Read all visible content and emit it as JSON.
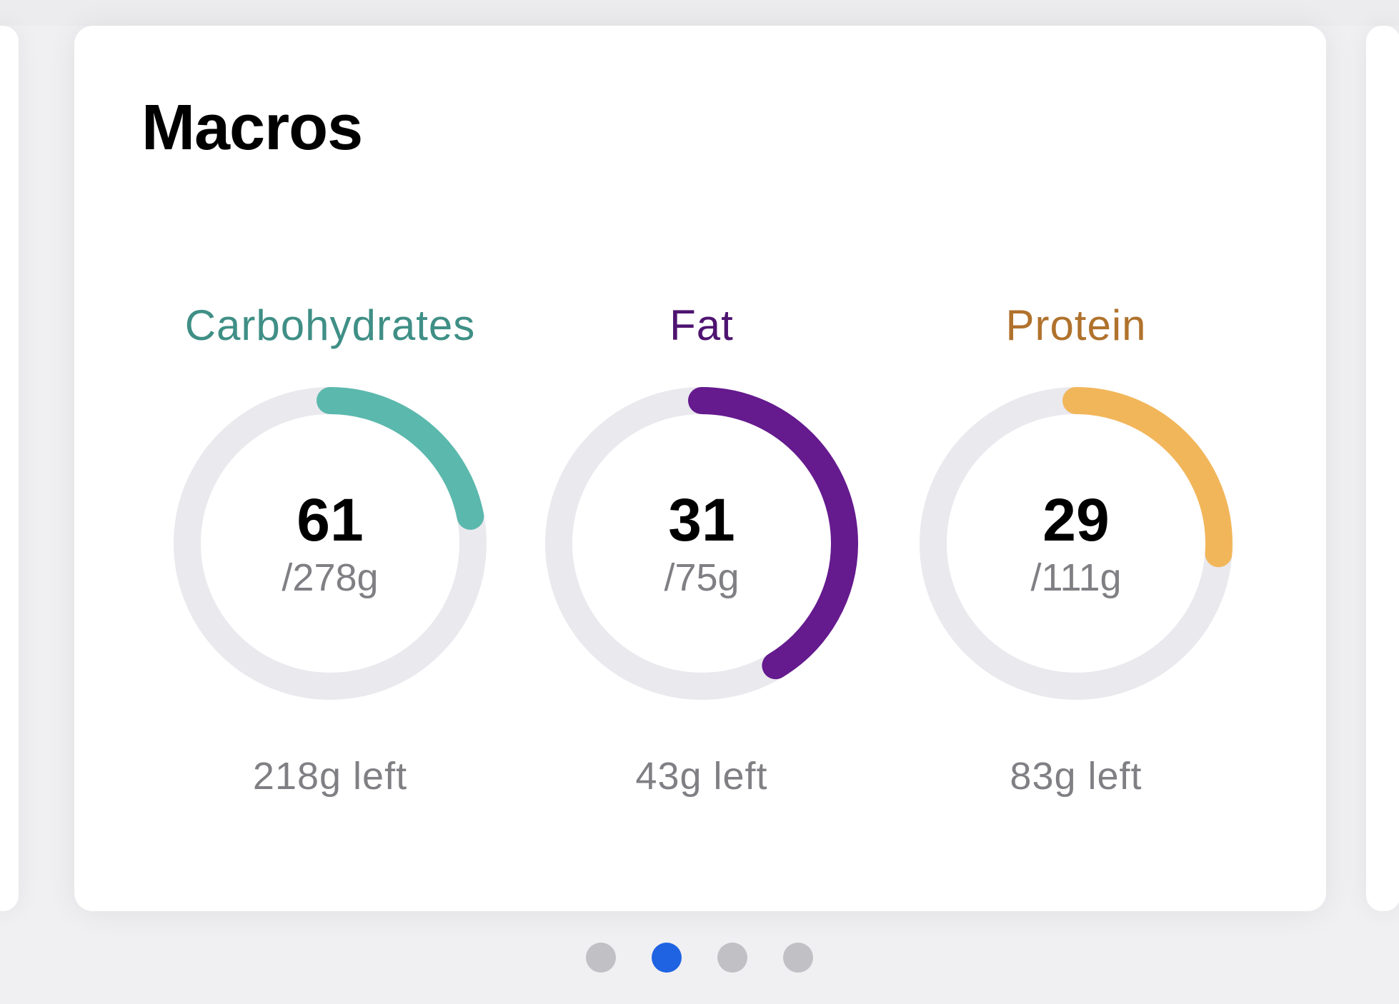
{
  "card": {
    "title": "Macros"
  },
  "macros": [
    {
      "name": "Carbohydrates",
      "consumed": "61",
      "goal": "/278g",
      "left": "218g left",
      "progress": 0.2194,
      "color": "#5bb8ad",
      "label_color": "#3f8f86"
    },
    {
      "name": "Fat",
      "consumed": "31",
      "goal": "/75g",
      "left": "43g left",
      "progress": 0.4133,
      "color": "#651a8e",
      "label_color": "#4e1470"
    },
    {
      "name": "Protein",
      "consumed": "29",
      "goal": "/111g",
      "left": "83g left",
      "progress": 0.2613,
      "color": "#f2b65a",
      "label_color": "#b0722c"
    }
  ],
  "colors": {
    "track": "#e9e9ee",
    "page_indicator_active": "#1f63e2",
    "page_indicator_inactive": "#c0c0c5"
  },
  "pagination": {
    "page_count": 4,
    "active_page": 2
  }
}
